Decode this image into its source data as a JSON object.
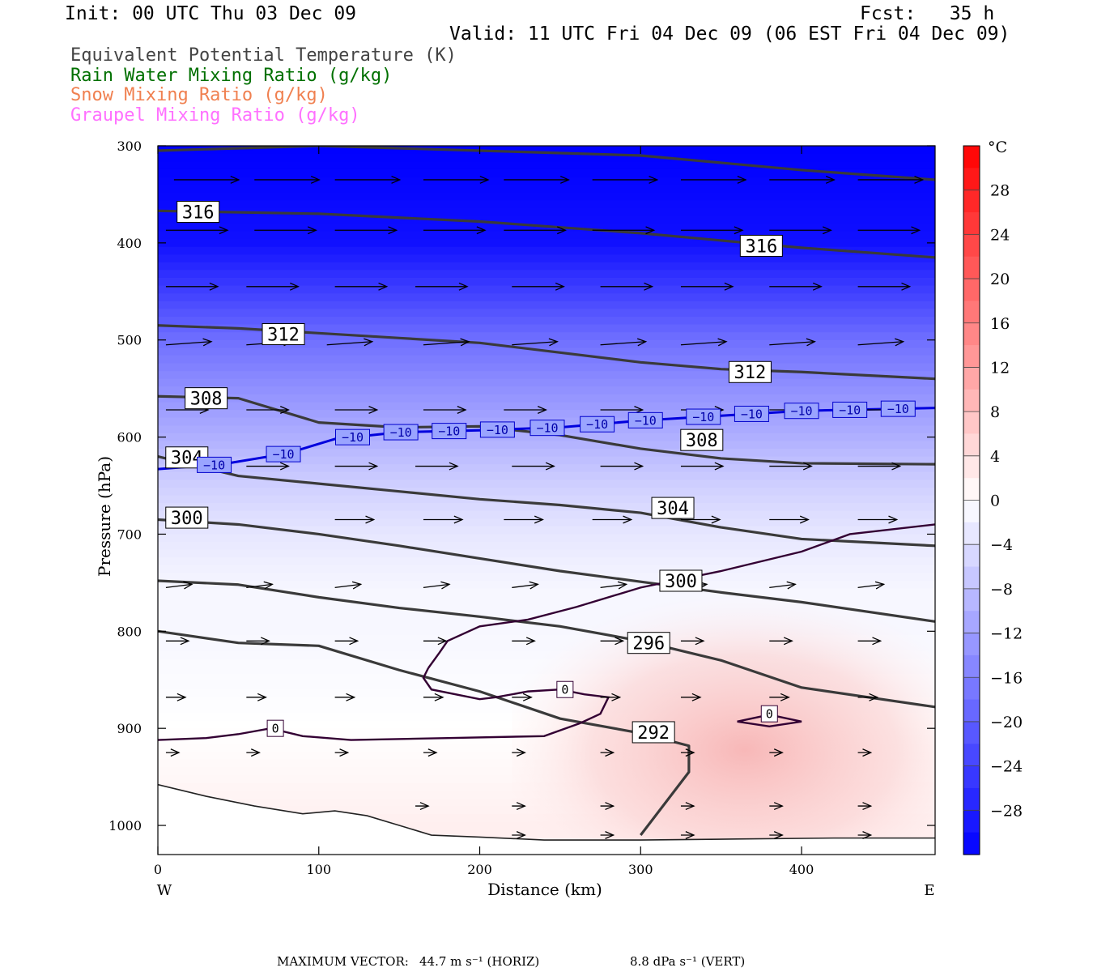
{
  "header": {
    "init": "Init: 00 UTC Thu 03 Dec 09",
    "fcst": "Fcst:   35 h",
    "valid": "Valid: 11 UTC Fri 04 Dec 09 (06 EST Fri 04 Dec 09)"
  },
  "legend": [
    {
      "label": "Equivalent Potential Temperature (K)",
      "color": "#444444"
    },
    {
      "label": "Rain Water Mixing Ratio (g/kg)",
      "color": "#007000"
    },
    {
      "label": "Snow Mixing Ratio (g/kg)",
      "color": "#f08050"
    },
    {
      "label": "Graupel Mixing Ratio (g/kg)",
      "color": "#ff70ff"
    }
  ],
  "footer": {
    "max_vector_label": "MAXIMUM VECTOR:",
    "horiz": "44.7 m s⁻¹ (HORIZ)",
    "vert": "8.8 dPa s⁻¹ (VERT)"
  },
  "chart_data": {
    "type": "heatmap",
    "xlabel": "Distance (km)",
    "ylabel": "Pressure (hPa)",
    "xlim": [
      0,
      483
    ],
    "ylim": [
      1030,
      300
    ],
    "x_ticks": [
      0,
      100,
      200,
      300,
      400
    ],
    "y_ticks": [
      300,
      400,
      500,
      600,
      700,
      800,
      900,
      1000
    ],
    "x_end_labels": {
      "left": "W",
      "right": "E"
    },
    "colorbar": {
      "unit": "°C",
      "range": [
        -32,
        32
      ],
      "tick_labels": [
        "28",
        "24",
        "20",
        "16",
        "12",
        "8",
        "4",
        "0",
        "−4",
        "−8",
        "−12",
        "−16",
        "−20",
        "−24",
        "−28"
      ],
      "tick_values": [
        28,
        24,
        20,
        16,
        12,
        8,
        4,
        0,
        -4,
        -8,
        -12,
        -16,
        -20,
        -24,
        -28
      ],
      "cold_color": "#0000ff",
      "warm_color": "#ff0000"
    },
    "temperature_field": {
      "profile": [
        [
          300,
          -32
        ],
        [
          400,
          -30
        ],
        [
          500,
          -18
        ],
        [
          600,
          -10
        ],
        [
          650,
          -6
        ],
        [
          700,
          -3
        ],
        [
          760,
          -1
        ],
        [
          800,
          -1
        ],
        [
          900,
          0
        ],
        [
          1000,
          2
        ]
      ],
      "warm_core": {
        "x": [
          220,
          483
        ],
        "p": [
          760,
          1030
        ],
        "max": 7
      }
    },
    "theta_e": {
      "color": "#3a3a3a",
      "series": [
        {
          "name": "316",
          "label_pos": [
            {
              "x": 25,
              "p": 368
            },
            {
              "x": 375,
              "p": 403
            }
          ],
          "points": [
            [
              0,
              305
            ],
            [
              100,
              300
            ],
            [
              200,
              305
            ],
            [
              300,
              310
            ],
            [
              400,
              325
            ],
            [
              483,
              335
            ]
          ]
        },
        {
          "name": "316",
          "label_pos": [],
          "points": [
            [
              0,
              367
            ],
            [
              100,
              370
            ],
            [
              200,
              378
            ],
            [
              300,
              390
            ],
            [
              400,
              405
            ],
            [
              483,
              415
            ]
          ]
        },
        {
          "name": "312",
          "label_pos": [
            {
              "x": 78,
              "p": 494
            },
            {
              "x": 368,
              "p": 533
            }
          ],
          "points": [
            [
              0,
              485
            ],
            [
              50,
              488
            ],
            [
              100,
              493
            ],
            [
              150,
              498
            ],
            [
              200,
              503
            ],
            [
              300,
              523
            ],
            [
              350,
              530
            ],
            [
              400,
              533
            ],
            [
              483,
              540
            ]
          ]
        },
        {
          "name": "308",
          "label_pos": [
            {
              "x": 30,
              "p": 560
            },
            {
              "x": 338,
              "p": 603
            }
          ],
          "points": [
            [
              0,
              558
            ],
            [
              50,
              560
            ],
            [
              100,
              585
            ],
            [
              150,
              590
            ],
            [
              200,
              589
            ],
            [
              250,
              598
            ],
            [
              300,
              612
            ],
            [
              350,
              622
            ],
            [
              400,
              627
            ],
            [
              483,
              628
            ]
          ]
        },
        {
          "name": "304",
          "label_pos": [
            {
              "x": 18,
              "p": 621
            },
            {
              "x": 320,
              "p": 673
            }
          ],
          "points": [
            [
              0,
              620
            ],
            [
              50,
              640
            ],
            [
              100,
              648
            ],
            [
              150,
              656
            ],
            [
              200,
              664
            ],
            [
              250,
              670
            ],
            [
              300,
              678
            ],
            [
              350,
              693
            ],
            [
              400,
              705
            ],
            [
              483,
              712
            ]
          ]
        },
        {
          "name": "300",
          "label_pos": [
            {
              "x": 18,
              "p": 683
            },
            {
              "x": 325,
              "p": 748
            }
          ],
          "points": [
            [
              0,
              685
            ],
            [
              50,
              690
            ],
            [
              100,
              700
            ],
            [
              150,
              712
            ],
            [
              200,
              725
            ],
            [
              250,
              738
            ],
            [
              300,
              749
            ],
            [
              350,
              760
            ],
            [
              400,
              770
            ],
            [
              483,
              790
            ]
          ]
        },
        {
          "name": "296",
          "label_pos": [
            {
              "x": 305,
              "p": 812
            }
          ],
          "points": [
            [
              0,
              748
            ],
            [
              50,
              752
            ],
            [
              100,
              765
            ],
            [
              150,
              776
            ],
            [
              200,
              785
            ],
            [
              250,
              795
            ],
            [
              300,
              810
            ],
            [
              350,
              830
            ],
            [
              400,
              858
            ],
            [
              483,
              878
            ]
          ]
        },
        {
          "name": "292",
          "label_pos": [
            {
              "x": 308,
              "p": 904
            }
          ],
          "points": [
            [
              0,
              800
            ],
            [
              50,
              812
            ],
            [
              100,
              815
            ],
            [
              150,
              840
            ],
            [
              200,
              862
            ],
            [
              250,
              890
            ],
            [
              300,
              905
            ],
            [
              330,
              918
            ],
            [
              330,
              945
            ],
            [
              300,
              1010
            ]
          ]
        }
      ]
    },
    "isotherm_minus10": {
      "color": "#0000dd",
      "label": "−10",
      "points": [
        [
          0,
          633
        ],
        [
          40,
          628
        ],
        [
          80,
          617
        ],
        [
          110,
          602
        ],
        [
          150,
          595
        ],
        [
          200,
          593
        ],
        [
          250,
          590
        ],
        [
          300,
          583
        ],
        [
          350,
          578
        ],
        [
          400,
          573
        ],
        [
          483,
          570
        ]
      ],
      "label_x": [
        35,
        78,
        121,
        151,
        181,
        211,
        242,
        273,
        303,
        339,
        369,
        400,
        430,
        460
      ]
    },
    "isotherm_zero": {
      "color": "#330033",
      "label": "0",
      "labels": [
        {
          "x": 73,
          "p": 900
        },
        {
          "x": 253,
          "p": 860
        },
        {
          "x": 380,
          "p": 885
        }
      ],
      "upper_points": [
        [
          168,
          838
        ],
        [
          175,
          822
        ],
        [
          180,
          810
        ],
        [
          200,
          795
        ],
        [
          230,
          788
        ],
        [
          260,
          775
        ],
        [
          300,
          755
        ],
        [
          350,
          738
        ],
        [
          400,
          718
        ],
        [
          430,
          700
        ],
        [
          483,
          690
        ]
      ],
      "lower_points": [
        [
          0,
          912
        ],
        [
          30,
          910
        ],
        [
          50,
          906
        ],
        [
          70,
          900
        ],
        [
          90,
          908
        ],
        [
          120,
          912
        ],
        [
          180,
          910
        ],
        [
          240,
          908
        ],
        [
          262,
          895
        ],
        [
          275,
          885
        ],
        [
          280,
          868
        ],
        [
          265,
          865
        ],
        [
          250,
          860
        ],
        [
          230,
          862
        ],
        [
          210,
          868
        ],
        [
          200,
          870
        ],
        [
          170,
          860
        ],
        [
          165,
          848
        ],
        [
          168,
          838
        ]
      ],
      "closed_small": [
        [
          360,
          893
        ],
        [
          380,
          886
        ],
        [
          400,
          893
        ],
        [
          380,
          898
        ],
        [
          360,
          893
        ]
      ]
    },
    "terrain": [
      [
        0,
        958
      ],
      [
        30,
        970
      ],
      [
        60,
        980
      ],
      [
        90,
        988
      ],
      [
        110,
        985
      ],
      [
        130,
        990
      ],
      [
        150,
        1000
      ],
      [
        170,
        1010
      ],
      [
        200,
        1012
      ],
      [
        240,
        1015
      ],
      [
        300,
        1015
      ],
      [
        360,
        1014
      ],
      [
        420,
        1013
      ],
      [
        483,
        1013
      ]
    ],
    "wind_vectors": {
      "rows": [
        {
          "p": 335,
          "x": [
            10,
            60,
            110,
            165,
            215,
            270,
            325,
            380,
            435
          ],
          "u": 1.0,
          "w": 0
        },
        {
          "p": 387,
          "x": [
            5,
            60,
            110,
            165,
            215,
            270,
            325,
            380,
            435
          ],
          "u": 0.95,
          "w": 0
        },
        {
          "p": 445,
          "x": [
            5,
            55,
            110,
            160,
            220,
            275,
            325,
            380,
            435
          ],
          "u": 0.8,
          "w": 0
        },
        {
          "p": 505,
          "x": [
            5,
            55,
            105,
            165,
            220,
            275,
            325,
            380,
            435
          ],
          "u": 0.7,
          "w": -0.05
        },
        {
          "p": 572,
          "x": [
            5,
            55,
            110,
            165,
            215,
            275,
            325,
            380,
            435
          ],
          "u": 0.65,
          "w": 0
        },
        {
          "p": 630,
          "x": [
            5,
            55,
            110,
            160,
            220,
            275,
            325,
            380,
            435
          ],
          "u": 0.65,
          "w": 0
        },
        {
          "p": 685,
          "x": [
            110,
            165,
            215,
            270,
            325,
            380,
            435
          ],
          "u": 0.6,
          "w": 0
        },
        {
          "p": 755,
          "x": [
            5,
            55,
            110,
            165,
            220,
            275,
            325,
            380,
            435
          ],
          "u": 0.4,
          "w": -0.05
        },
        {
          "p": 810,
          "x": [
            5,
            55,
            110,
            165,
            220,
            275,
            325,
            380,
            435
          ],
          "u": 0.35,
          "w": 0
        },
        {
          "p": 868,
          "x": [
            5,
            55,
            110,
            165,
            220,
            275,
            325,
            380,
            435
          ],
          "u": 0.3,
          "w": 0
        },
        {
          "p": 925,
          "x": [
            5,
            55,
            110,
            165,
            220,
            275,
            325,
            380,
            435
          ],
          "u": 0.2,
          "w": 0
        },
        {
          "p": 980,
          "x": [
            160,
            220,
            275,
            325,
            380,
            435
          ],
          "u": 0.2,
          "w": 0
        },
        {
          "p": 1010,
          "x": [
            220,
            275,
            325,
            380,
            435
          ],
          "u": 0.2,
          "w": 0
        }
      ]
    }
  }
}
